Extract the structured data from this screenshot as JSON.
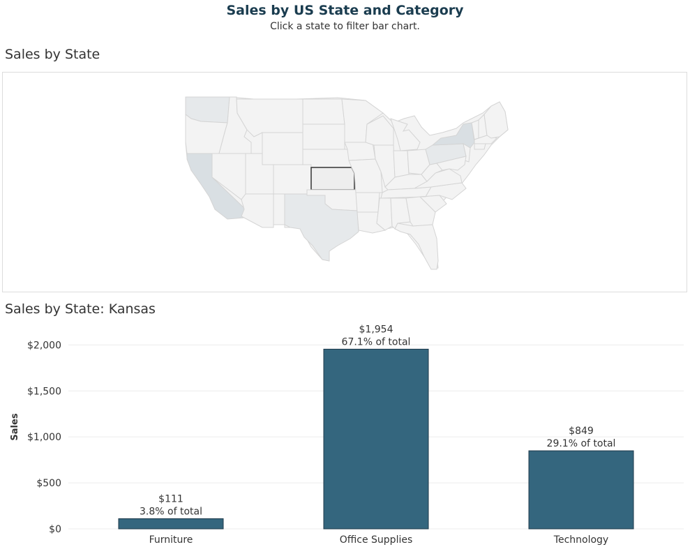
{
  "dashboard": {
    "title": "Sales by US State and Category",
    "subtitle": "Click a state to filter bar chart."
  },
  "map_section": {
    "title": "Sales by State",
    "selected_state": "Kansas",
    "colors": {
      "base": "#f3f3f3",
      "medium": "#e6e9eb",
      "dark": "#d9dfe3",
      "border": "#d4d4d4",
      "selection_outline": "#333333"
    },
    "shaded_states": [
      {
        "state": "California",
        "shade": "dark"
      },
      {
        "state": "Texas",
        "shade": "medium"
      },
      {
        "state": "New York",
        "shade": "dark"
      },
      {
        "state": "Washington",
        "shade": "medium"
      },
      {
        "state": "Pennsylvania",
        "shade": "medium"
      }
    ]
  },
  "bar_section": {
    "title": "Sales by State: Kansas"
  },
  "chart_data": {
    "type": "bar",
    "title": "Sales by State: Kansas",
    "ylabel": "Sales",
    "xlabel": "",
    "categories": [
      "Furniture",
      "Office Supplies",
      "Technology"
    ],
    "values": [
      111,
      1954,
      849
    ],
    "value_labels": [
      "$111",
      "$1,954",
      "$849"
    ],
    "percent_labels": [
      "3.8% of total",
      "67.1% of total",
      "29.1% of total"
    ],
    "ylim": [
      0,
      2200
    ],
    "yticks": [
      0,
      500,
      1000,
      1500,
      2000
    ],
    "ytick_labels": [
      "$0",
      "$500",
      "$1,000",
      "$1,500",
      "$2,000"
    ],
    "grid": true,
    "bar_color": "#34667e"
  }
}
